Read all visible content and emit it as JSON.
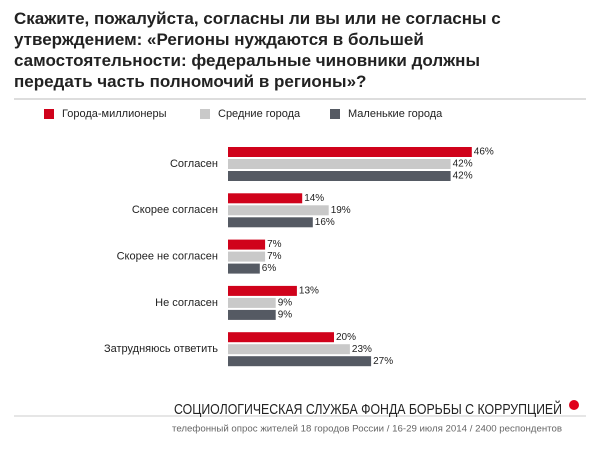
{
  "chart_data": {
    "type": "hbar",
    "title": "Скажите, пожалуйста, согласны ли вы или не согласны с утверждением: «Регионы нуждаются в большей самостоятельности: федеральные чиновники должны передать часть полномочий в регионы»?",
    "categories": [
      "Согласен",
      "Скорее согласен",
      "Скорее не согласен",
      "Не согласен",
      "Затрудняюсь ответить"
    ],
    "series": [
      {
        "name": "Города-миллионеры",
        "color": "#d0021b",
        "values": [
          46,
          14,
          7,
          13,
          20
        ],
        "value_labels": [
          "46%",
          "14%",
          "7%",
          "13%",
          "20%"
        ]
      },
      {
        "name": "Средние города",
        "color": "#c9c9c9",
        "values": [
          42,
          19,
          7,
          9,
          23
        ],
        "value_labels": [
          "42%",
          "19%",
          "7%",
          "9%",
          "23%"
        ]
      },
      {
        "name": "Маленькие города",
        "color": "#555a63",
        "values": [
          42,
          16,
          6,
          9,
          27
        ],
        "value_labels": [
          "42%",
          "16%",
          "6%",
          "9%",
          "27%"
        ]
      }
    ],
    "legend": "top",
    "footer": "СОЦИОЛОГИЧЕСКАЯ СЛУЖБА ФОНДА БОРЬБЫ С КОРРУПЦИЕЙ",
    "source": "телефонный опрос жителей 18 городов России / 16-29 июля 2014 / 2400 респондентов"
  }
}
